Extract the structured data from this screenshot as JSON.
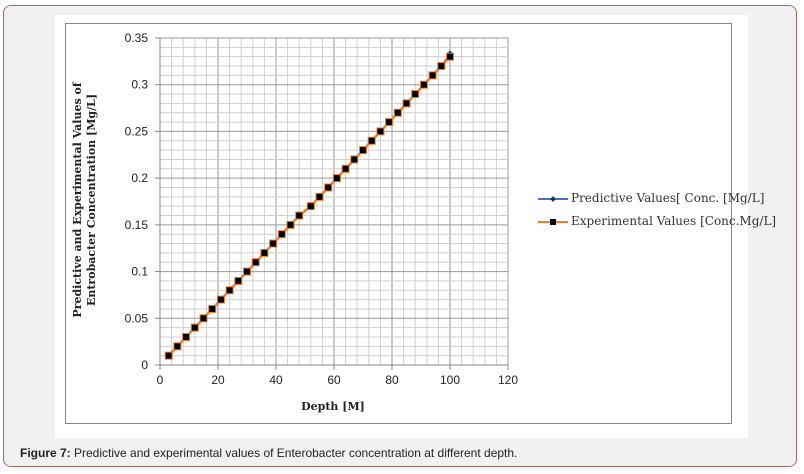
{
  "caption": {
    "label": "Figure 7:",
    "text": " Predictive and experimental values of Enterobacter concentration at different depth."
  },
  "chart_data": {
    "type": "line",
    "xlabel": "Depth [M]",
    "ylabel": "Predictive and Experimental Values of Entrobacter Concentration [Mg/L]",
    "xlim": [
      0,
      120
    ],
    "ylim": [
      0,
      0.35
    ],
    "xticks": [
      "0",
      "20",
      "40",
      "60",
      "80",
      "100",
      "120"
    ],
    "yticks": [
      "0",
      "0.05",
      "0.1",
      "0.15",
      "0.2",
      "0.25",
      "0.3",
      "0.35"
    ],
    "grid": true,
    "legend": "right",
    "x": [
      3,
      6,
      9,
      12,
      15,
      18,
      21,
      24,
      27,
      30,
      33,
      36,
      39,
      42,
      45,
      48,
      52,
      55,
      58,
      61,
      64,
      67,
      70,
      73,
      76,
      79,
      82,
      85,
      88,
      91,
      94,
      97,
      100
    ],
    "series": [
      {
        "name": "Predictive Values[ Conc. [Mg/L]",
        "color": "#4472c4",
        "marker": "diamond",
        "values": [
          0.01,
          0.02,
          0.03,
          0.04,
          0.05,
          0.06,
          0.07,
          0.08,
          0.09,
          0.1,
          0.11,
          0.12,
          0.13,
          0.14,
          0.15,
          0.16,
          0.17,
          0.18,
          0.19,
          0.2,
          0.21,
          0.22,
          0.23,
          0.24,
          0.25,
          0.26,
          0.27,
          0.28,
          0.29,
          0.3,
          0.31,
          0.32,
          0.333
        ]
      },
      {
        "name": "Experimental Values [Conc.Mg/L]",
        "color": "#ed7d31",
        "marker": "square",
        "values": [
          0.01,
          0.02,
          0.03,
          0.04,
          0.05,
          0.06,
          0.07,
          0.08,
          0.09,
          0.1,
          0.11,
          0.12,
          0.13,
          0.14,
          0.15,
          0.16,
          0.17,
          0.18,
          0.19,
          0.2,
          0.21,
          0.22,
          0.23,
          0.24,
          0.25,
          0.26,
          0.27,
          0.28,
          0.29,
          0.3,
          0.31,
          0.32,
          0.33
        ]
      }
    ]
  }
}
